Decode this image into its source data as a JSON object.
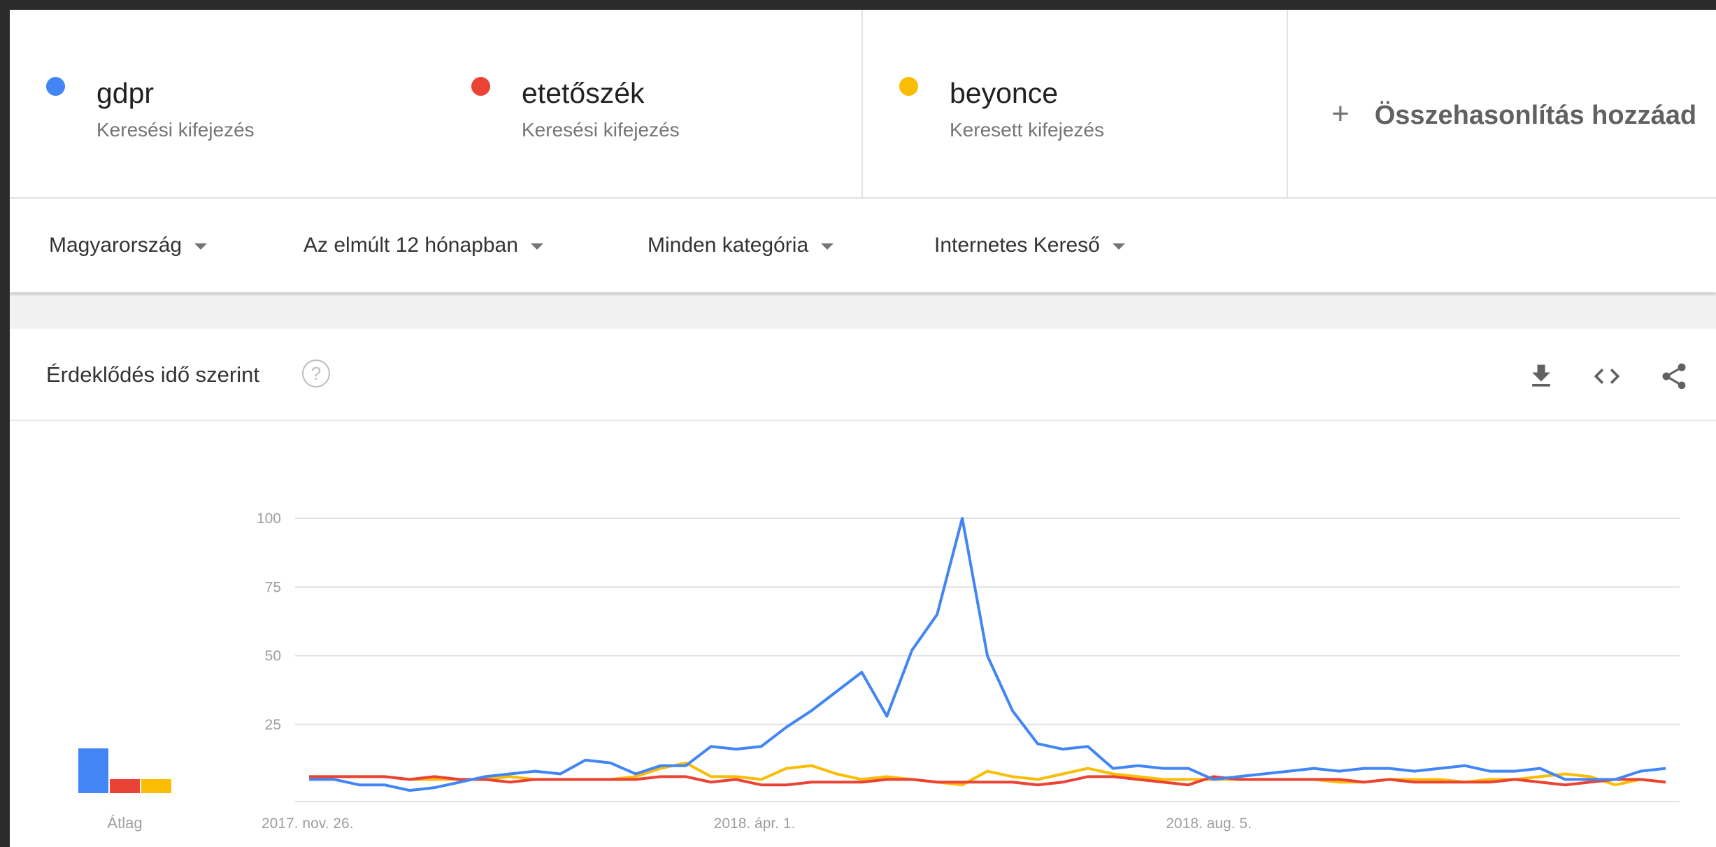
{
  "terms": [
    {
      "name": "gdpr",
      "sub": "Keresési kifejezés",
      "color": "#4285f4"
    },
    {
      "name": "etetőszék",
      "sub": "Keresési kifejezés",
      "color": "#ea4335"
    },
    {
      "name": "beyonce",
      "sub": "Keresett kifejezés",
      "color": "#fbbc04"
    }
  ],
  "add_compare": {
    "plus": "+",
    "label": "Összehasonlítás hozzáad"
  },
  "filters": {
    "region": "Magyarország",
    "period": "Az elmúlt 12 hónapban",
    "category": "Minden kategória",
    "source": "Internetes Kereső"
  },
  "card": {
    "title": "Érdeklődés idő szerint",
    "help": "?",
    "icons": [
      "download-icon",
      "embed-icon",
      "share-icon"
    ]
  },
  "chart_data": {
    "type": "line",
    "ylim": [
      0,
      100
    ],
    "yticks": [
      25,
      50,
      75,
      100
    ],
    "grid": true,
    "x_tick_labels": [
      "2017. nov. 26.",
      "2018. ápr. 1.",
      "2018. aug. 5."
    ],
    "x_tick_positions": [
      0,
      18,
      36
    ],
    "average_label": "Átlag",
    "series": [
      {
        "name": "gdpr",
        "color": "#4285f4",
        "average": 16,
        "values": [
          5,
          5,
          3,
          3,
          1,
          2,
          4,
          6,
          7,
          8,
          7,
          12,
          11,
          7,
          10,
          10,
          17,
          16,
          17,
          24,
          30,
          37,
          44,
          28,
          52,
          65,
          100,
          50,
          30,
          18,
          16,
          17,
          9,
          10,
          9,
          9,
          5,
          6,
          7,
          8,
          9,
          8,
          9,
          9,
          8,
          9,
          10,
          8,
          8,
          9,
          5,
          5,
          5,
          8,
          9
        ]
      },
      {
        "name": "etetőszék",
        "color": "#ea4335",
        "average": 5,
        "values": [
          6,
          6,
          6,
          6,
          5,
          6,
          5,
          5,
          4,
          5,
          5,
          5,
          5,
          5,
          6,
          6,
          4,
          5,
          3,
          3,
          4,
          4,
          4,
          5,
          5,
          4,
          4,
          4,
          4,
          3,
          4,
          6,
          6,
          5,
          4,
          3,
          6,
          5,
          5,
          5,
          5,
          5,
          4,
          5,
          4,
          4,
          4,
          4,
          5,
          4,
          3,
          4,
          5,
          5,
          4
        ]
      },
      {
        "name": "beyonce",
        "color": "#fbbc04",
        "average": 5,
        "values": [
          6,
          6,
          6,
          6,
          5,
          5,
          5,
          5,
          6,
          5,
          5,
          5,
          5,
          6,
          9,
          11,
          6,
          6,
          5,
          9,
          10,
          7,
          5,
          6,
          5,
          4,
          3,
          8,
          6,
          5,
          7,
          9,
          7,
          6,
          5,
          5,
          5,
          5,
          5,
          5,
          5,
          4,
          4,
          5,
          5,
          5,
          4,
          5,
          5,
          6,
          7,
          6,
          3,
          5,
          4
        ]
      }
    ]
  }
}
